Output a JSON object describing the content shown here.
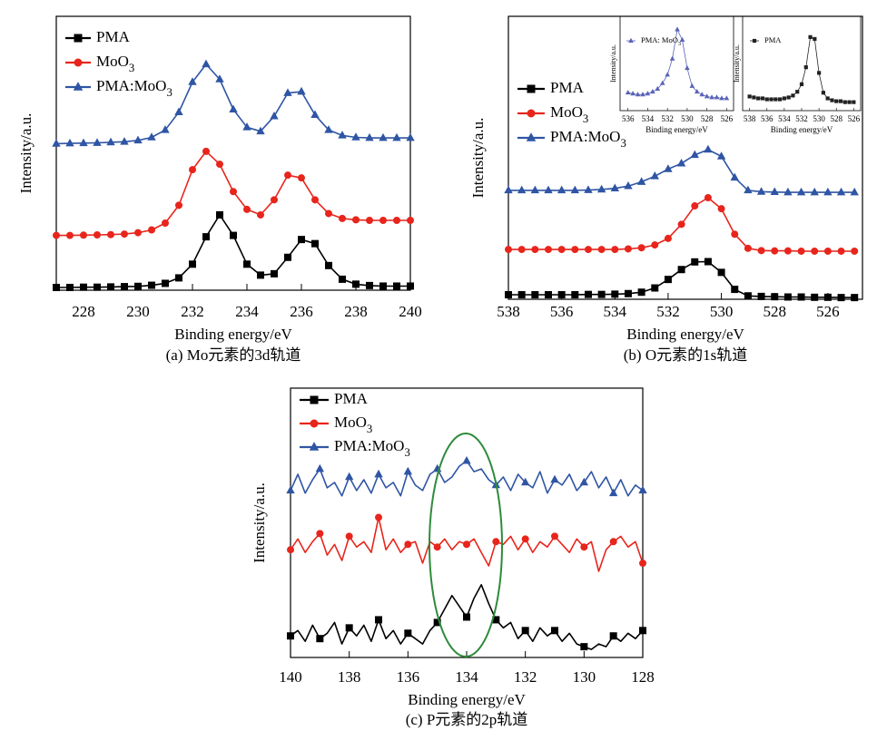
{
  "chart_data": [
    {
      "type": "line",
      "xlabel": "Binding energy/eV",
      "ylabel": "Intensity/a.u.",
      "caption": "(a) Mo元素的3d轨道",
      "x": [
        227,
        227.5,
        228,
        228.5,
        229,
        229.5,
        230,
        230.5,
        231,
        231.5,
        232,
        232.5,
        233,
        233.5,
        234,
        234.5,
        235,
        235.5,
        236,
        236.5,
        237,
        237.5,
        238,
        238.5,
        239,
        239.5,
        240
      ],
      "xlim": [
        227,
        240
      ],
      "xticks": [
        228,
        230,
        232,
        234,
        236,
        238,
        240
      ],
      "ylim": [
        0,
        10
      ],
      "legend": "upper left",
      "series": [
        {
          "name": "PMA",
          "color": "#000000",
          "marker": "square",
          "values": [
            0.1,
            0.1,
            0.11,
            0.11,
            0.12,
            0.13,
            0.14,
            0.18,
            0.25,
            0.45,
            0.95,
            1.95,
            2.75,
            2.0,
            0.95,
            0.55,
            0.6,
            1.2,
            1.85,
            1.7,
            0.9,
            0.4,
            0.22,
            0.17,
            0.15,
            0.15,
            0.15
          ]
        },
        {
          "name": "MoO3",
          "color": "#e8251c",
          "marker": "circle",
          "values": [
            2.0,
            2.0,
            2.01,
            2.02,
            2.03,
            2.05,
            2.1,
            2.2,
            2.45,
            3.1,
            4.4,
            5.07,
            4.6,
            3.6,
            2.95,
            2.75,
            3.3,
            4.2,
            4.1,
            3.3,
            2.8,
            2.62,
            2.57,
            2.55,
            2.55,
            2.55,
            2.55
          ]
        },
        {
          "name": "PMA:MoO3",
          "color": "#2f55a4",
          "marker": "triangle",
          "values": [
            5.35,
            5.36,
            5.37,
            5.38,
            5.4,
            5.42,
            5.47,
            5.58,
            5.85,
            6.5,
            7.6,
            8.25,
            7.7,
            6.6,
            5.95,
            5.8,
            6.35,
            7.2,
            7.25,
            6.4,
            5.85,
            5.65,
            5.58,
            5.56,
            5.56,
            5.56,
            5.56
          ]
        }
      ]
    },
    {
      "type": "line",
      "xlabel": "Binding energy/eV",
      "ylabel": "Intensity/a.u.",
      "caption": "(b) O元素的1s轨道",
      "x": [
        538,
        537.5,
        537,
        536.5,
        536,
        535.5,
        535,
        534.5,
        534,
        533.5,
        533,
        532.5,
        532,
        531.5,
        531,
        530.5,
        530,
        529.5,
        529,
        528.5,
        528,
        527.5,
        527,
        526.5,
        526,
        525.5,
        525
      ],
      "xlim": [
        538,
        524.7
      ],
      "xticks": [
        538,
        536,
        534,
        532,
        530,
        528,
        526
      ],
      "ylim": [
        0,
        10
      ],
      "legend": "center left",
      "series": [
        {
          "name": "PMA",
          "color": "#000000",
          "marker": "square",
          "values": [
            0.16,
            0.16,
            0.16,
            0.16,
            0.16,
            0.16,
            0.17,
            0.17,
            0.18,
            0.2,
            0.25,
            0.4,
            0.7,
            1.05,
            1.32,
            1.33,
            0.95,
            0.35,
            0.12,
            0.1,
            0.09,
            0.08,
            0.08,
            0.07,
            0.07,
            0.06,
            0.06
          ]
        },
        {
          "name": "MoO3",
          "color": "#e8251c",
          "marker": "circle",
          "values": [
            1.76,
            1.76,
            1.76,
            1.76,
            1.76,
            1.76,
            1.76,
            1.76,
            1.76,
            1.78,
            1.82,
            1.92,
            2.15,
            2.65,
            3.3,
            3.59,
            3.2,
            2.3,
            1.8,
            1.72,
            1.71,
            1.71,
            1.7,
            1.7,
            1.7,
            1.7,
            1.7
          ]
        },
        {
          "name": "PMA:MoO3",
          "color": "#2f55a4",
          "marker": "triangle",
          "values": [
            3.85,
            3.85,
            3.85,
            3.85,
            3.85,
            3.85,
            3.86,
            3.88,
            3.92,
            4.0,
            4.15,
            4.35,
            4.6,
            4.8,
            5.1,
            5.29,
            5.05,
            4.3,
            3.85,
            3.8,
            3.79,
            3.78,
            3.78,
            3.78,
            3.78,
            3.78,
            3.78
          ]
        }
      ]
    },
    {
      "type": "line",
      "xlabel": "Binding energy/eV",
      "ylabel": "Intensity/a.u.",
      "x": [
        536,
        535.5,
        535,
        534.5,
        534,
        533.5,
        533,
        532.5,
        532,
        531.5,
        531,
        530.5,
        530,
        529.5,
        529,
        528.5,
        528,
        527.5,
        527,
        526.5,
        526
      ],
      "xlim": [
        536.8,
        525.3
      ],
      "xticks": [
        536,
        534,
        532,
        530,
        528,
        526
      ],
      "ylim": [
        0,
        10
      ],
      "legend": "upper left",
      "series": [
        {
          "name": "PMA: MoO3",
          "color": "#5a63b8",
          "marker": "triangle",
          "values": [
            1.9,
            1.8,
            1.7,
            1.7,
            1.8,
            2.0,
            2.3,
            2.9,
            3.8,
            5.5,
            8.6,
            7.5,
            4.5,
            2.6,
            2.0,
            1.7,
            1.5,
            1.4,
            1.4,
            1.3,
            1.3
          ]
        }
      ]
    },
    {
      "type": "line",
      "xlabel": "Binding energy/eV",
      "ylabel": "Intensity/a.u.",
      "x": [
        538,
        537.5,
        537,
        536.5,
        536,
        535.5,
        535,
        534.5,
        534,
        533.5,
        533,
        532.5,
        532,
        531.5,
        531,
        530.5,
        530,
        529.5,
        529,
        528.5,
        528,
        527.5,
        527,
        526.5,
        526
      ],
      "xlim": [
        538.8,
        525.2
      ],
      "xticks": [
        538,
        536,
        534,
        532,
        530,
        528,
        526
      ],
      "ylim": [
        0,
        10
      ],
      "legend": "upper left",
      "series": [
        {
          "name": "PMA",
          "color": "#222222",
          "marker": "square",
          "values": [
            1.5,
            1.4,
            1.3,
            1.3,
            1.2,
            1.2,
            1.2,
            1.2,
            1.3,
            1.4,
            1.6,
            2.0,
            2.8,
            4.6,
            7.8,
            7.6,
            4.0,
            1.9,
            1.3,
            1.1,
            1.0,
            1.0,
            0.9,
            0.9,
            0.9
          ]
        }
      ]
    },
    {
      "type": "line",
      "xlabel": "Binding energy/eV",
      "ylabel": "Intensity/a.u.",
      "caption": "(c) P元素的2p轨道",
      "x": [
        140,
        139.75,
        139.5,
        139.25,
        139,
        138.75,
        138.5,
        138.25,
        138,
        137.75,
        137.5,
        137.25,
        137,
        136.75,
        136.5,
        136.25,
        136,
        135.75,
        135.5,
        135.25,
        135,
        134.75,
        134.5,
        134.25,
        134,
        133.75,
        133.5,
        133.25,
        133,
        132.75,
        132.5,
        132.25,
        132,
        131.75,
        131.5,
        131.25,
        131,
        130.75,
        130.5,
        130.25,
        130,
        129.75,
        129.5,
        129.25,
        129,
        128.75,
        128.5,
        128.25,
        128
      ],
      "xlim": [
        140,
        128
      ],
      "xticks": [
        140,
        138,
        136,
        134,
        132,
        130,
        128
      ],
      "ylim": [
        0,
        10
      ],
      "legend": "upper left",
      "series": [
        {
          "name": "PMA",
          "color": "#000000",
          "marker": "square",
          "values": [
            0.8,
            1.0,
            0.6,
            1.2,
            0.7,
            0.9,
            1.3,
            0.5,
            1.1,
            0.8,
            1.2,
            0.6,
            1.4,
            0.7,
            1.0,
            0.5,
            0.9,
            0.7,
            0.5,
            1.0,
            1.3,
            1.8,
            2.3,
            1.9,
            1.5,
            2.2,
            2.7,
            2.0,
            1.4,
            1.1,
            1.3,
            0.7,
            1.0,
            0.6,
            1.1,
            0.8,
            1.0,
            0.6,
            0.9,
            0.5,
            0.4,
            0.3,
            0.5,
            0.4,
            0.8,
            0.6,
            0.9,
            0.7,
            1.0
          ]
        },
        {
          "name": "MoO3",
          "color": "#e8251c",
          "marker": "circle",
          "values": [
            4.0,
            4.4,
            3.9,
            4.3,
            4.6,
            3.8,
            4.2,
            3.6,
            4.5,
            4.1,
            4.3,
            3.9,
            5.2,
            4.0,
            4.4,
            3.9,
            4.2,
            4.3,
            3.5,
            4.3,
            4.1,
            4.4,
            4.0,
            4.3,
            4.2,
            4.4,
            3.9,
            3.4,
            4.3,
            4.2,
            4.5,
            4.0,
            4.4,
            3.9,
            4.3,
            4.1,
            4.5,
            4.2,
            3.9,
            4.4,
            4.1,
            4.3,
            3.2,
            4.0,
            4.3,
            4.5,
            4.1,
            4.3,
            3.5
          ]
        },
        {
          "name": "PMA:MoO3",
          "color": "#2f55a4",
          "marker": "triangle",
          "values": [
            6.2,
            6.8,
            6.1,
            6.6,
            7.0,
            6.3,
            6.5,
            6.0,
            6.7,
            6.2,
            6.6,
            6.1,
            6.8,
            6.3,
            6.5,
            6.0,
            6.9,
            6.4,
            6.2,
            6.8,
            7.0,
            6.5,
            6.7,
            7.1,
            7.3,
            6.9,
            7.0,
            6.6,
            6.4,
            6.7,
            6.2,
            6.8,
            6.5,
            6.3,
            6.9,
            6.1,
            6.6,
            6.4,
            6.8,
            6.2,
            6.5,
            6.9,
            6.3,
            6.7,
            6.1,
            6.6,
            6.0,
            6.4,
            6.2
          ]
        }
      ]
    }
  ]
}
